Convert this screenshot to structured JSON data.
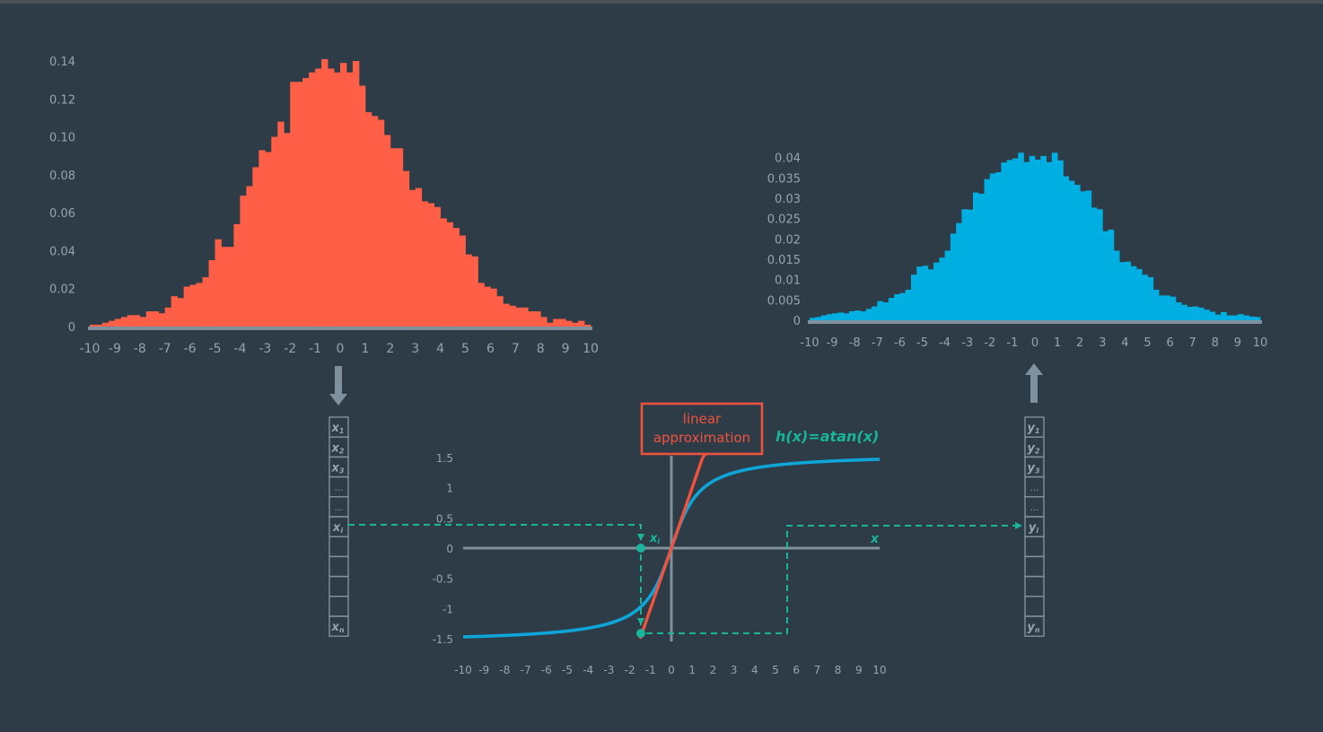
{
  "colors": {
    "background": "#2e3c48",
    "input_hist": "#fe5f46",
    "output_hist": "#00afe1",
    "axis": "#7f919e",
    "label": "#95a4b0",
    "teal": "#19b59a",
    "curve": "#0ea5d9",
    "linear": "#f0523e"
  },
  "chart_data": [
    {
      "type": "bar",
      "xlim": [
        -10,
        10
      ],
      "ylim": [
        0,
        0.14
      ],
      "xticks": [
        -10,
        -9,
        -8,
        -7,
        -6,
        -5,
        -4,
        -3,
        -2,
        -1,
        0,
        1,
        2,
        3,
        4,
        5,
        6,
        7,
        8,
        9,
        10
      ],
      "yticks": [
        "0",
        "0.02",
        "0.04",
        "0.06",
        "0.08",
        "0.10",
        "0.12",
        "0.14"
      ],
      "bin_width": 0.25,
      "bin_start": -10,
      "values": [
        0.001,
        0.001,
        0.002,
        0.003,
        0.004,
        0.005,
        0.006,
        0.006,
        0.005,
        0.008,
        0.008,
        0.007,
        0.01,
        0.016,
        0.015,
        0.021,
        0.022,
        0.023,
        0.026,
        0.035,
        0.046,
        0.042,
        0.042,
        0.054,
        0.069,
        0.074,
        0.084,
        0.093,
        0.092,
        0.1,
        0.108,
        0.102,
        0.129,
        0.129,
        0.131,
        0.134,
        0.136,
        0.141,
        0.136,
        0.134,
        0.139,
        0.134,
        0.14,
        0.127,
        0.113,
        0.111,
        0.109,
        0.101,
        0.094,
        0.094,
        0.082,
        0.072,
        0.073,
        0.066,
        0.065,
        0.063,
        0.057,
        0.055,
        0.052,
        0.048,
        0.038,
        0.037,
        0.023,
        0.021,
        0.02,
        0.016,
        0.012,
        0.011,
        0.01,
        0.01,
        0.008,
        0.008,
        0.005,
        0.002,
        0.004,
        0.004,
        0.003,
        0.002,
        0.003,
        0.001
      ]
    },
    {
      "type": "bar",
      "xlim": [
        -10,
        10
      ],
      "ylim": [
        0,
        0.045
      ],
      "xticks": [
        -10,
        -9,
        -8,
        -7,
        -6,
        -5,
        -4,
        -3,
        -2,
        -1,
        0,
        1,
        2,
        3,
        4,
        5,
        6,
        7,
        8,
        9,
        10
      ],
      "yticks": [
        "0",
        "0.005",
        "0.01",
        "0.015",
        "0.02",
        "0.025",
        "0.03",
        "0.035",
        "0.04"
      ],
      "bin_width": 0.25,
      "bin_start": -10,
      "values": [
        0.0006,
        0.0008,
        0.0012,
        0.0015,
        0.0017,
        0.0019,
        0.0017,
        0.0022,
        0.0024,
        0.0022,
        0.0028,
        0.0034,
        0.0047,
        0.0044,
        0.0055,
        0.0064,
        0.0067,
        0.0075,
        0.0112,
        0.0132,
        0.0134,
        0.0125,
        0.0142,
        0.0154,
        0.0171,
        0.0213,
        0.0239,
        0.0273,
        0.0272,
        0.0314,
        0.0311,
        0.0347,
        0.0361,
        0.0364,
        0.0388,
        0.0394,
        0.0398,
        0.0412,
        0.0389,
        0.0404,
        0.0395,
        0.0404,
        0.0389,
        0.0412,
        0.0393,
        0.0354,
        0.0343,
        0.0333,
        0.0317,
        0.0319,
        0.0277,
        0.0273,
        0.0219,
        0.0223,
        0.0171,
        0.0143,
        0.0144,
        0.0133,
        0.0126,
        0.0112,
        0.0106,
        0.0075,
        0.0061,
        0.0061,
        0.0058,
        0.0044,
        0.0038,
        0.0033,
        0.0034,
        0.0031,
        0.0026,
        0.0021,
        0.0014,
        0.002,
        0.0012,
        0.0012,
        0.0015,
        0.0012,
        0.0009,
        0.0008
      ]
    },
    {
      "type": "line",
      "xlim": [
        -10,
        10
      ],
      "ylim": [
        -1.5,
        1.5
      ],
      "xticks": [
        -10,
        -9,
        -8,
        -7,
        -6,
        -5,
        -4,
        -3,
        -2,
        -1,
        0,
        1,
        2,
        3,
        4,
        5,
        6,
        7,
        8,
        9,
        10
      ],
      "yticks": [
        "1.5",
        "1",
        "0.5",
        "0",
        "-0.5",
        "-1",
        "-1.5"
      ],
      "series": [
        {
          "function": "atan",
          "x_range": [
            -10,
            10
          ]
        },
        {
          "function": "linear",
          "slope": 1,
          "x_range": [
            -1.5,
            1.5
          ]
        }
      ],
      "curve_label": "h(x)=atan(x)",
      "axis_x_label": "x",
      "point_label": "x",
      "point_sub": "i",
      "annotation": [
        "linear",
        "approximation"
      ]
    }
  ],
  "vectors": {
    "input": {
      "letter": "x",
      "cells": [
        {
          "sub": "1"
        },
        {
          "sub": "2"
        },
        {
          "sub": "3"
        },
        {
          "dots": "..."
        },
        {
          "dots": "..."
        },
        {
          "sub": "i"
        },
        {},
        {},
        {},
        {},
        {
          "sub": "n"
        }
      ]
    },
    "output": {
      "letter": "y",
      "cells": [
        {
          "sub": "1"
        },
        {
          "sub": "2"
        },
        {
          "sub": "3"
        },
        {
          "dots": "..."
        },
        {
          "dots": "..."
        },
        {
          "sub": "i"
        },
        {},
        {},
        {},
        {},
        {
          "sub": "n"
        }
      ]
    }
  }
}
